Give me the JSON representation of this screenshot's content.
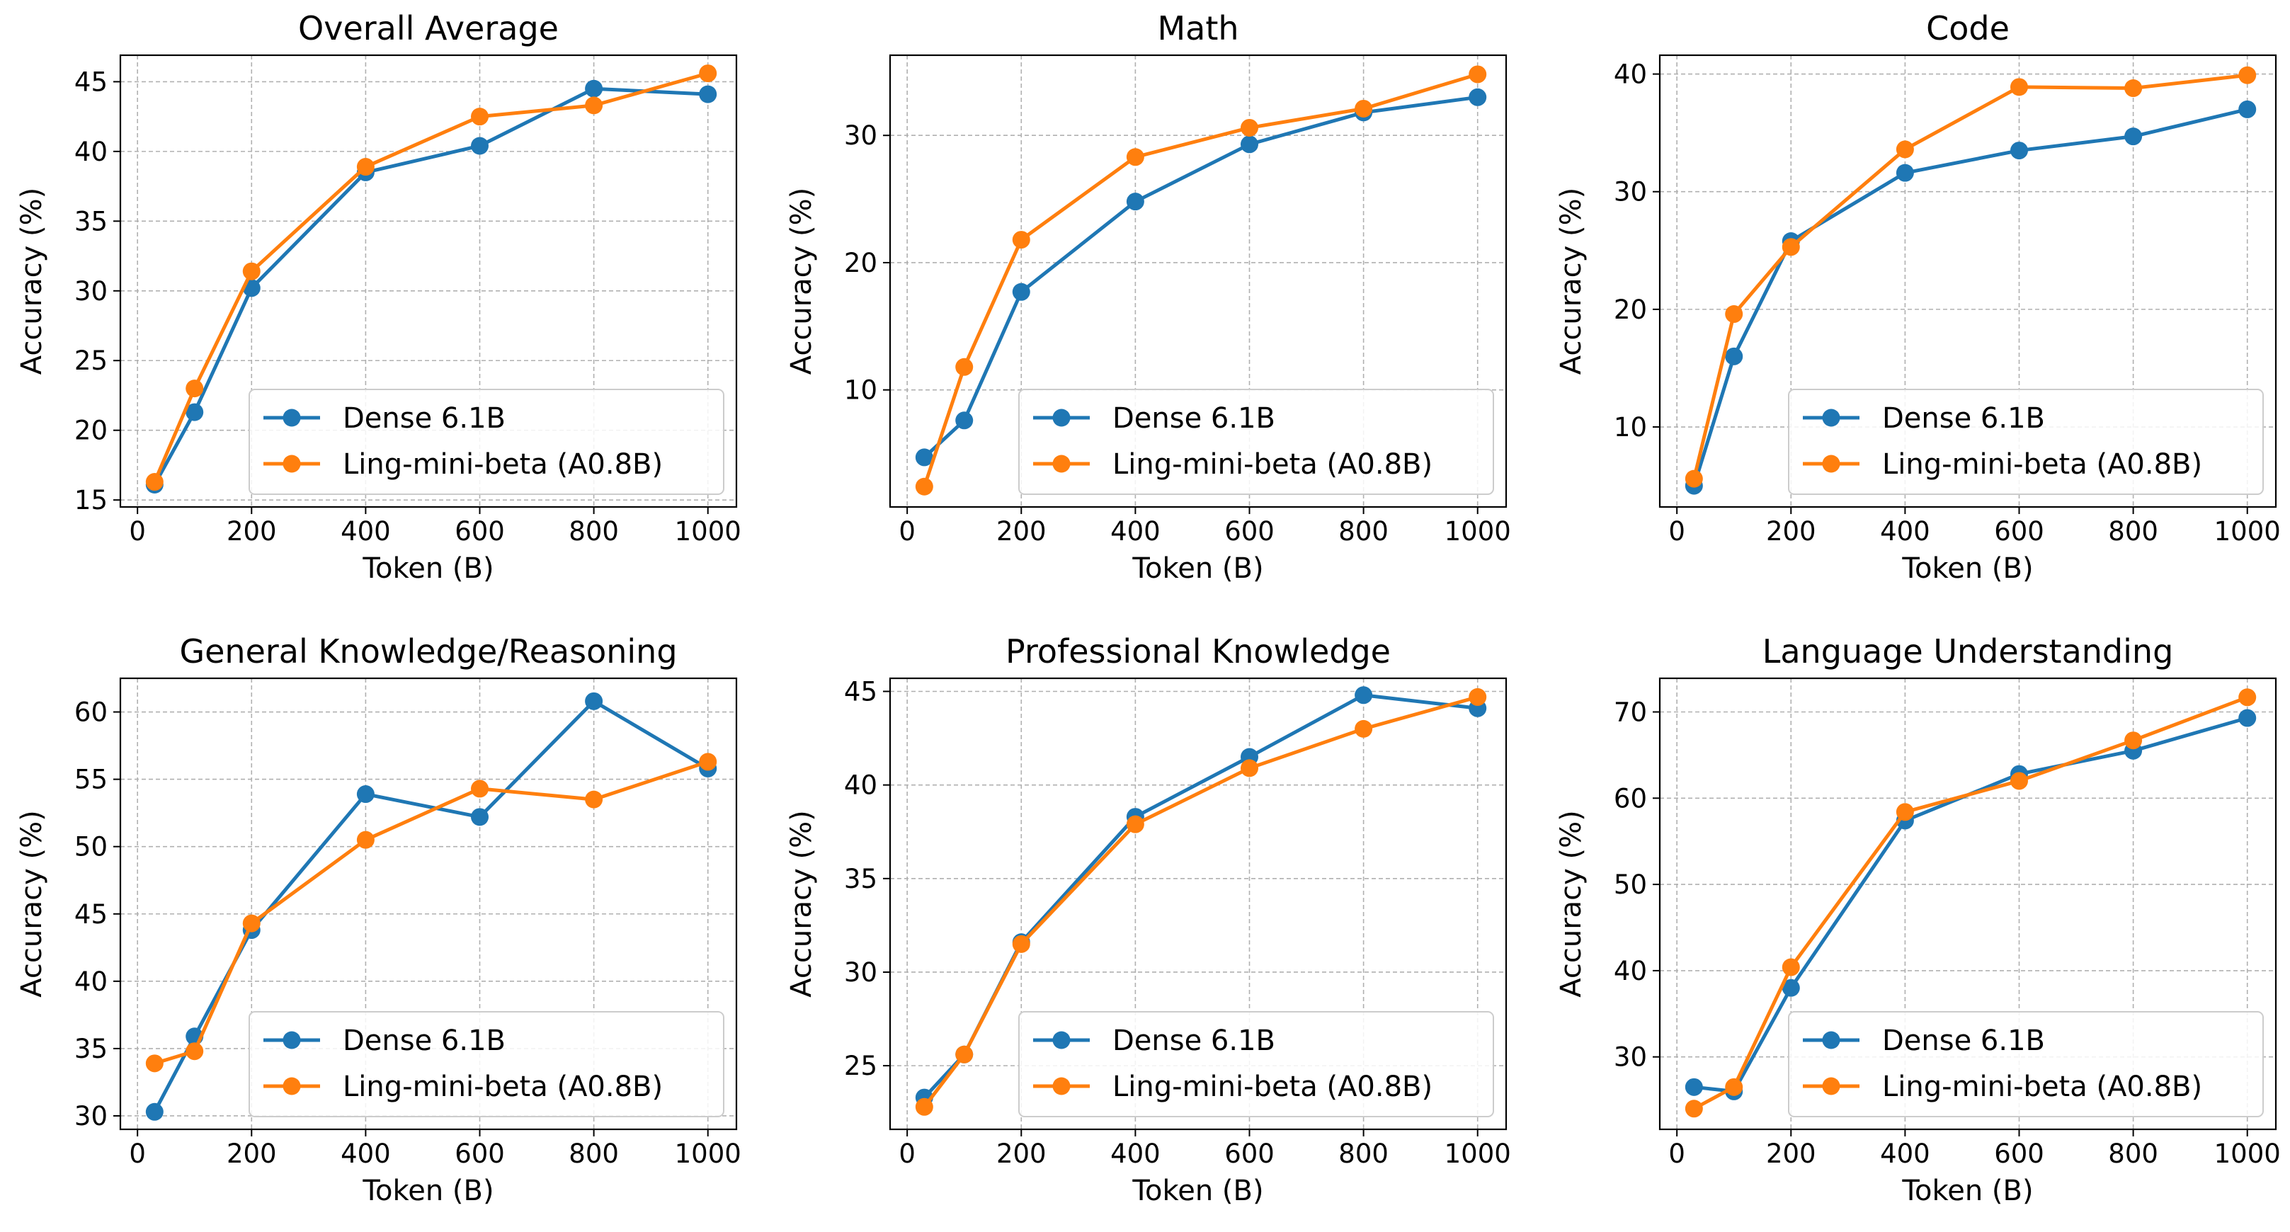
{
  "colors": {
    "series1": "#1f77b4",
    "series2": "#ff7f0e",
    "grid": "#b0b0b0"
  },
  "legend": [
    "Dense 6.1B",
    "Ling-mini-beta (A0.8B)"
  ],
  "chart_data": [
    {
      "type": "line",
      "title": "Overall Average",
      "xlabel": "Token (B)",
      "ylabel": "Accuracy (%)",
      "xlim": [
        -30,
        1050
      ],
      "ylim": [
        14.5,
        46.9
      ],
      "xticks": [
        0,
        200,
        400,
        600,
        800,
        1000
      ],
      "yticks": [
        15,
        20,
        25,
        30,
        35,
        40,
        45
      ],
      "grid": true,
      "legend_loc": "lower right",
      "x": [
        30,
        100,
        200,
        400,
        600,
        800,
        1000
      ],
      "series": [
        {
          "name": "Dense 6.1B",
          "values": [
            16.1,
            21.3,
            30.2,
            38.5,
            40.4,
            44.5,
            44.1
          ]
        },
        {
          "name": "Ling-mini-beta (A0.8B)",
          "values": [
            16.3,
            23.0,
            31.4,
            38.9,
            42.5,
            43.3,
            45.6
          ]
        }
      ]
    },
    {
      "type": "line",
      "title": "Math",
      "xlabel": "Token (B)",
      "ylabel": "Accuracy (%)",
      "xlim": [
        -30,
        1050
      ],
      "ylim": [
        0.8,
        36.3
      ],
      "xticks": [
        0,
        200,
        400,
        600,
        800,
        1000
      ],
      "yticks": [
        10,
        20,
        30
      ],
      "grid": true,
      "legend_loc": "lower right",
      "x": [
        30,
        100,
        200,
        400,
        600,
        800,
        1000
      ],
      "series": [
        {
          "name": "Dense 6.1B",
          "values": [
            4.7,
            7.6,
            17.7,
            24.8,
            29.3,
            31.8,
            33.0
          ]
        },
        {
          "name": "Ling-mini-beta (A0.8B)",
          "values": [
            2.4,
            11.8,
            21.8,
            28.3,
            30.6,
            32.1,
            34.8
          ]
        }
      ]
    },
    {
      "type": "line",
      "title": "Code",
      "xlabel": "Token (B)",
      "ylabel": "Accuracy (%)",
      "xlim": [
        -30,
        1050
      ],
      "ylim": [
        3.2,
        41.6
      ],
      "xticks": [
        0,
        200,
        400,
        600,
        800,
        1000
      ],
      "yticks": [
        10,
        20,
        30,
        40
      ],
      "grid": true,
      "legend_loc": "lower right",
      "x": [
        30,
        100,
        200,
        400,
        600,
        800,
        1000
      ],
      "series": [
        {
          "name": "Dense 6.1B",
          "values": [
            5.0,
            16.0,
            25.8,
            31.6,
            33.5,
            34.7,
            37.0
          ]
        },
        {
          "name": "Ling-mini-beta (A0.8B)",
          "values": [
            5.6,
            19.6,
            25.3,
            33.6,
            38.9,
            38.8,
            39.9
          ]
        }
      ]
    },
    {
      "type": "line",
      "title": "General Knowledge/Reasoning",
      "xlabel": "Token (B)",
      "ylabel": "Accuracy (%)",
      "xlim": [
        -30,
        1050
      ],
      "ylim": [
        29.0,
        62.5
      ],
      "xticks": [
        0,
        200,
        400,
        600,
        800,
        1000
      ],
      "yticks": [
        30,
        35,
        40,
        45,
        50,
        55,
        60
      ],
      "grid": true,
      "legend_loc": "lower right",
      "x": [
        30,
        100,
        200,
        400,
        600,
        800,
        1000
      ],
      "series": [
        {
          "name": "Dense 6.1B",
          "values": [
            30.3,
            35.9,
            43.8,
            53.9,
            52.2,
            60.8,
            55.8
          ]
        },
        {
          "name": "Ling-mini-beta (A0.8B)",
          "values": [
            33.9,
            34.8,
            44.3,
            50.5,
            54.3,
            53.5,
            56.3
          ]
        }
      ]
    },
    {
      "type": "line",
      "title": "Professional Knowledge",
      "xlabel": "Token (B)",
      "ylabel": "Accuracy (%)",
      "xlim": [
        -30,
        1050
      ],
      "ylim": [
        21.6,
        45.7
      ],
      "xticks": [
        0,
        200,
        400,
        600,
        800,
        1000
      ],
      "yticks": [
        25,
        30,
        35,
        40,
        45
      ],
      "grid": true,
      "legend_loc": "lower right",
      "x": [
        30,
        100,
        200,
        400,
        600,
        800,
        1000
      ],
      "series": [
        {
          "name": "Dense 6.1B",
          "values": [
            23.3,
            25.6,
            31.6,
            38.3,
            41.5,
            44.8,
            44.1
          ]
        },
        {
          "name": "Ling-mini-beta (A0.8B)",
          "values": [
            22.8,
            25.6,
            31.5,
            37.9,
            40.9,
            43.0,
            44.7
          ]
        }
      ]
    },
    {
      "type": "line",
      "title": "Language Understanding",
      "xlabel": "Token (B)",
      "ylabel": "Accuracy (%)",
      "xlim": [
        -30,
        1050
      ],
      "ylim": [
        21.6,
        73.9
      ],
      "xticks": [
        0,
        200,
        400,
        600,
        800,
        1000
      ],
      "yticks": [
        30,
        40,
        50,
        60,
        70
      ],
      "grid": true,
      "legend_loc": "lower right",
      "x": [
        30,
        100,
        200,
        400,
        600,
        800,
        1000
      ],
      "series": [
        {
          "name": "Dense 6.1B",
          "values": [
            26.5,
            26.0,
            38.0,
            57.4,
            62.8,
            65.5,
            69.3
          ]
        },
        {
          "name": "Ling-mini-beta (A0.8B)",
          "values": [
            24.0,
            26.5,
            40.4,
            58.4,
            62.0,
            66.7,
            71.7
          ]
        }
      ]
    }
  ]
}
